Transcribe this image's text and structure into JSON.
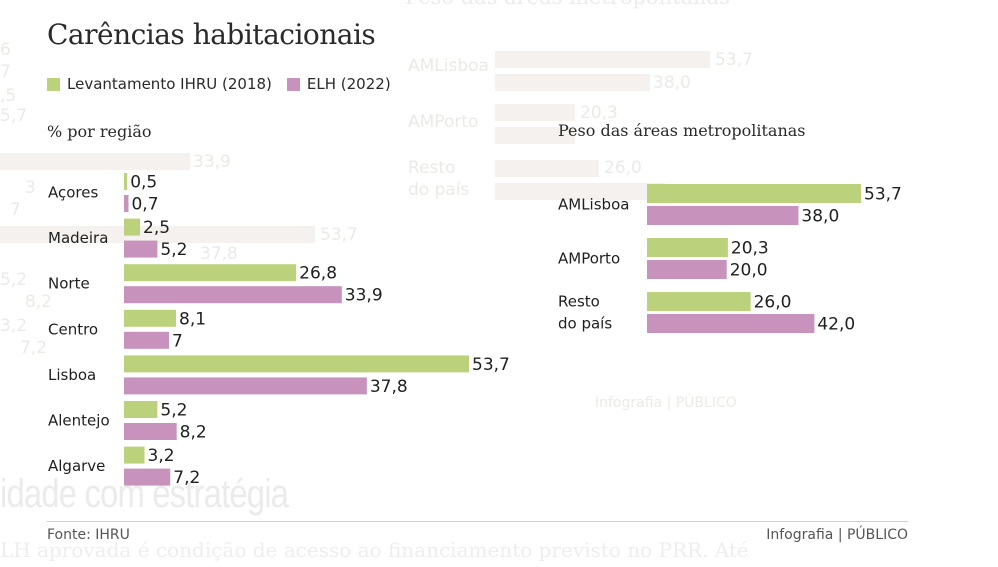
{
  "title": "Carências habitacionais",
  "legend": [
    {
      "label": "Levantamento IHRU (2018)",
      "color": "#bcd17c"
    },
    {
      "label": "ELH (2022)",
      "color": "#c793bd"
    }
  ],
  "colors": {
    "series_2018": "#bcd17c",
    "series_2022": "#c793bd",
    "text": "#2a2a2a",
    "footer_text": "#555555"
  },
  "footer": {
    "source": "Fonte: IHRU",
    "credit": "Infografia | PÚBLICO"
  },
  "chart_data": [
    {
      "type": "bar",
      "orientation": "horizontal",
      "title": "% por região",
      "categories": [
        "Açores",
        "Madeira",
        "Norte",
        "Centro",
        "Lisboa",
        "Alentejo",
        "Algarve"
      ],
      "series": [
        {
          "name": "Levantamento IHRU (2018)",
          "values": [
            0.5,
            2.5,
            26.8,
            8.1,
            53.7,
            5.2,
            3.2
          ],
          "labels": [
            "0,5",
            "2,5",
            "26,8",
            "8,1",
            "53,7",
            "5,2",
            "3,2"
          ]
        },
        {
          "name": "ELH (2022)",
          "values": [
            0.7,
            5.2,
            33.9,
            7,
            37.8,
            8.2,
            7.2
          ],
          "labels": [
            "0,7",
            "5,2",
            "33,9",
            "7",
            "37,8",
            "8,2",
            "7,2"
          ]
        }
      ],
      "xlim": [
        0,
        53.7
      ]
    },
    {
      "type": "bar",
      "orientation": "horizontal",
      "title": "Peso das áreas metropolitanas",
      "categories": [
        [
          "AMLisboa"
        ],
        [
          "AMPorto"
        ],
        [
          "Resto",
          "do país"
        ]
      ],
      "series": [
        {
          "name": "Levantamento IHRU (2018)",
          "values": [
            53.7,
            20.3,
            26.0
          ],
          "labels": [
            "53,7",
            "20,3",
            "26,0"
          ]
        },
        {
          "name": "ELH (2022)",
          "values": [
            38.0,
            20.0,
            42.0
          ],
          "labels": [
            "38,0",
            "20,0",
            "42,0"
          ]
        }
      ],
      "xlim": [
        0,
        53.7
      ]
    }
  ]
}
